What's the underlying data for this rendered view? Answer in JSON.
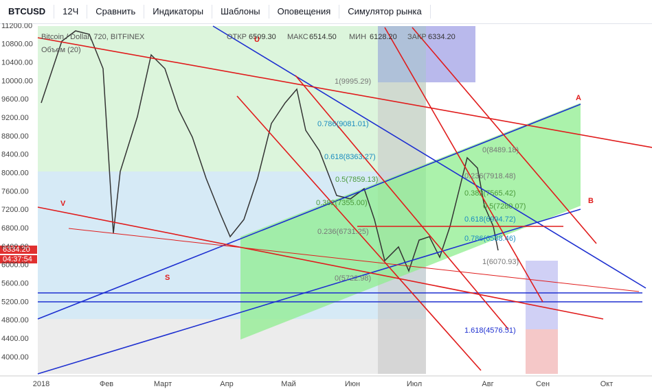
{
  "toolbar": {
    "symbol": "BTCUSD",
    "interval": "12Ч",
    "buttons": [
      "Сравнить",
      "Индикаторы",
      "Шаблоны",
      "Оповещения",
      "Симулятор рынка"
    ]
  },
  "legend": {
    "title": "Bitcoin / Dollar, 720, BITFINEX",
    "ohlc": [
      "ОТКР",
      "6509.30",
      "МАКС",
      "6514.50",
      "МИН",
      "6128.20",
      "ЗАКР",
      "6334.20"
    ],
    "volume": "Объем (20)"
  },
  "price_axis": {
    "labels": [
      "11200.00",
      "10800.00",
      "10400.00",
      "10000.00",
      "9600.00",
      "9200.00",
      "8800.00",
      "8400.00",
      "8000.00",
      "7600.00",
      "7200.00",
      "6800.00",
      "6400.00",
      "6000.00",
      "5600.00",
      "5200.00",
      "4800.00",
      "4400.00",
      "4000.00"
    ],
    "current": "6334.20",
    "timer": "04:37:54"
  },
  "time_axis": {
    "labels": [
      "2018",
      "Фев",
      "Март",
      "Апр",
      "Май",
      "Июн",
      "Июл",
      "Авг",
      "Сен",
      "Окт"
    ]
  },
  "fib_1": [
    "1(9995.29)",
    "0.786(9081.01)",
    "0.618(8363.27)",
    "0.5(7859.13)",
    "0.382(7355.00)",
    "0.236(6731.25)",
    "0(5722.98)"
  ],
  "fib_2": [
    "0(8489.18)",
    "0.236(7918.48)",
    "0.382(7565.42)",
    "0.5(7280.07)",
    "0.618(6994.72)",
    "0.786(6588.46)",
    "1(6070.93)",
    "1.618(4576.51)"
  ],
  "annotations": [
    "U",
    "V",
    "S",
    "A",
    "B"
  ]
}
